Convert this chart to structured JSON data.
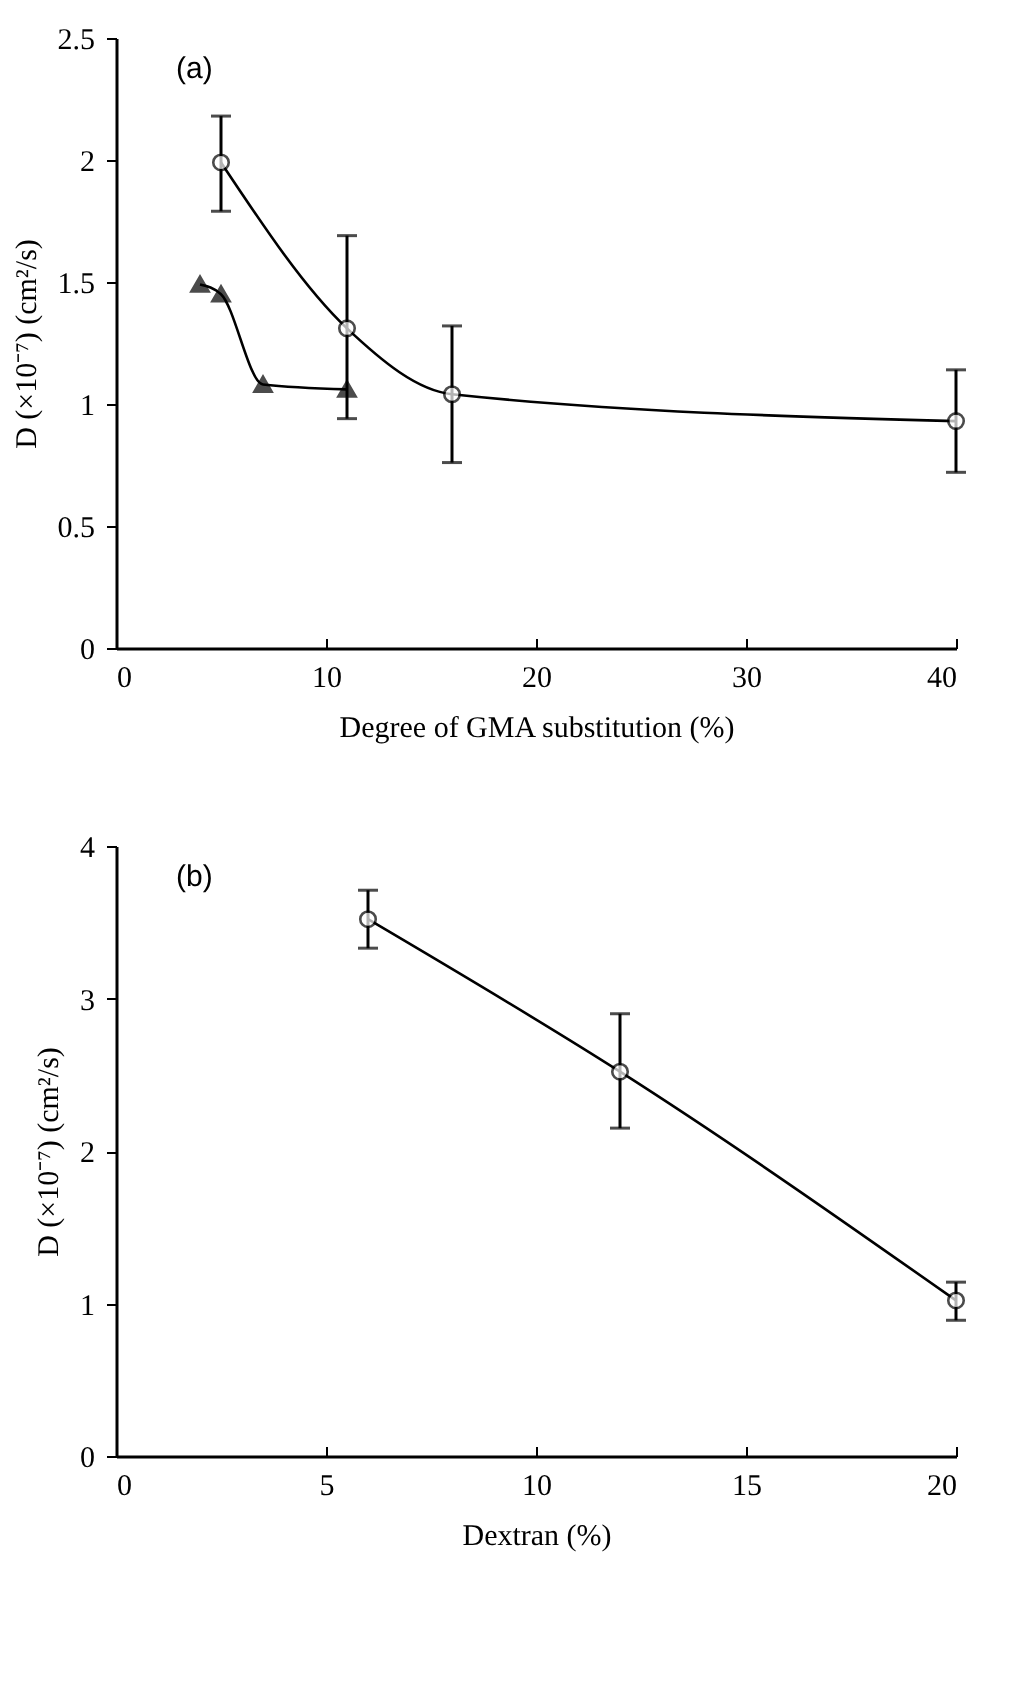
{
  "chart_data": [
    {
      "type": "line",
      "title": "(a)",
      "xlabel": "Degree of GMA substitution (%)",
      "ylabel": "D (×10⁻⁷) (cm²/s)",
      "xlim": [
        0,
        40
      ],
      "xticks": [
        0,
        10,
        20,
        30,
        40
      ],
      "ylim": [
        0,
        2.5
      ],
      "yticks": [
        0,
        0.5,
        1,
        1.5,
        2,
        2.5
      ],
      "grid": false,
      "series": [
        {
          "color": "#000000",
          "marker": "circle",
          "x": [
            5,
            11,
            16,
            40
          ],
          "values": [
            1.99,
            1.31,
            1.04,
            0.93
          ],
          "errors": [
            [
              1.79,
              2.18
            ],
            [
              0.94,
              1.69
            ],
            [
              0.76,
              1.32
            ],
            [
              0.72,
              1.14
            ]
          ]
        },
        {
          "color": "#000000",
          "marker": "triangle",
          "x": [
            4,
            5,
            7,
            11
          ],
          "values": [
            1.49,
            1.45,
            1.08,
            1.06
          ]
        }
      ]
    },
    {
      "type": "line",
      "title": "(b)",
      "xlabel": "Dextran (%)",
      "ylabel": "D (×10⁻⁷) (cm²/s)",
      "xlim": [
        0,
        20
      ],
      "xticks": [
        0,
        5,
        10,
        15,
        20
      ],
      "ylim": [
        0,
        4
      ],
      "yticks": [
        0,
        1,
        2,
        3,
        4
      ],
      "grid": false,
      "series": [
        {
          "color": "#000000",
          "marker": "circle",
          "x": [
            6,
            12,
            20
          ],
          "values": [
            3.52,
            2.52,
            1.02
          ],
          "errors": [
            [
              3.33,
              3.71
            ],
            [
              2.15,
              2.9
            ],
            [
              0.89,
              1.14
            ]
          ]
        }
      ]
    }
  ]
}
